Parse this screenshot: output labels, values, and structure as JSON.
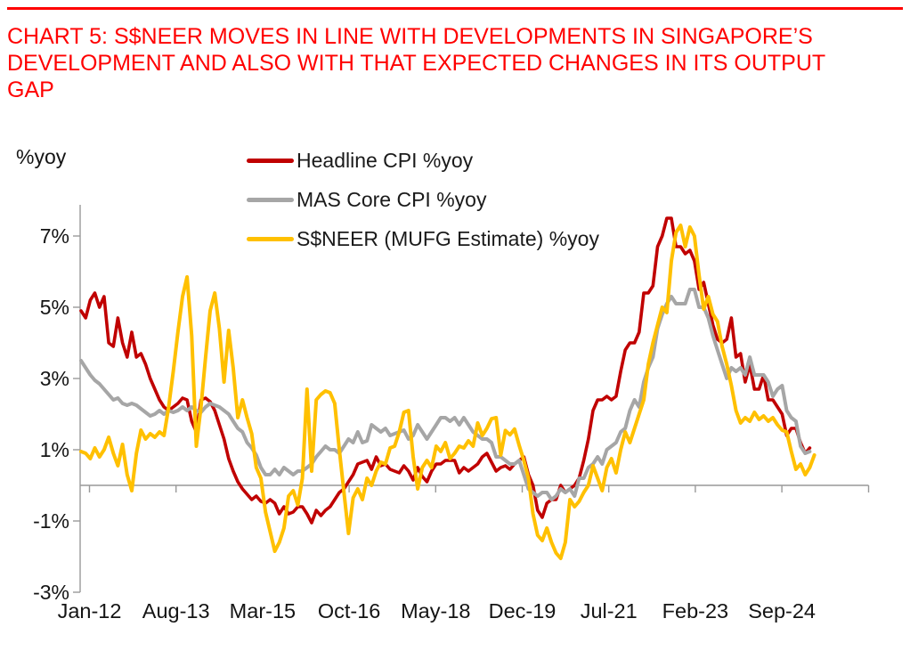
{
  "header": {
    "title": "CHART 5: S$NEER MOVES IN LINE WITH DEVELOPMENTS IN SINGAPORE’S DEVELOPMENT AND ALSO WITH THAT EXPECTED CHANGES IN ITS OUTPUT GAP",
    "title_lines": [
      "CHART 5: S$NEER MOVES IN LINE WITH DEVELOPMENTS IN SINGAPORE’S",
      "DEVELOPMENT AND ALSO WITH THAT EXPECTED CHANGES IN ITS OUTPUT",
      "GAP"
    ],
    "rule_color": "#ff0000",
    "title_color": "#ff0000"
  },
  "chart_data": {
    "type": "line",
    "y_axis_label": "%yoy",
    "y_ticks": [
      "7%",
      "5%",
      "3%",
      "1%",
      "-1%",
      "-3%"
    ],
    "y_tick_values": [
      7,
      5,
      3,
      1,
      -1,
      -3
    ],
    "ylim": [
      -3,
      7.9
    ],
    "grid": "zero-line-only",
    "legend_position": "top-left-inside",
    "x_tick_labels": [
      "Jan-12",
      "Aug-13",
      "Mar-15",
      "Oct-16",
      "May-18",
      "Dec-19",
      "Jul-21",
      "Feb-23",
      "Sep-24"
    ],
    "x_start": "Jan-12",
    "x_interval": "monthly",
    "axis_color": "#999999",
    "series": [
      {
        "name": "Headline CPI %yoy",
        "color": "#C00000",
        "values": [
          4.9,
          4.7,
          5.2,
          5.4,
          5.0,
          5.3,
          4.0,
          3.9,
          4.7,
          4.0,
          3.6,
          4.3,
          3.6,
          3.7,
          3.4,
          3.0,
          2.7,
          2.4,
          2.2,
          2.1,
          2.2,
          2.3,
          2.45,
          2.4,
          1.8,
          1.5,
          2.4,
          2.45,
          2.35,
          2.1,
          1.7,
          1.3,
          0.75,
          0.4,
          0.1,
          -0.1,
          -0.25,
          -0.4,
          -0.3,
          -0.45,
          -0.5,
          -0.4,
          -0.5,
          -0.8,
          -0.6,
          -0.8,
          -0.75,
          -0.6,
          -0.6,
          -0.8,
          -1.05,
          -0.7,
          -0.85,
          -0.7,
          -0.6,
          -0.4,
          -0.2,
          -0.1,
          0.1,
          0.3,
          0.6,
          0.65,
          0.7,
          0.45,
          0.8,
          0.55,
          0.6,
          0.45,
          0.4,
          0.35,
          0.55,
          0.4,
          0.15,
          0.5,
          0.25,
          0.1,
          0.4,
          0.6,
          0.6,
          0.7,
          0.7,
          0.7,
          0.35,
          0.5,
          0.4,
          0.5,
          0.6,
          0.8,
          0.9,
          0.65,
          0.4,
          0.5,
          0.55,
          0.45,
          0.6,
          0.7,
          0.8,
          0.3,
          0.0,
          -0.7,
          -0.9,
          -0.5,
          -0.4,
          -0.4,
          0.0,
          -0.2,
          -0.1,
          0.0,
          0.2,
          0.7,
          1.3,
          2.1,
          2.4,
          2.4,
          2.5,
          2.4,
          2.5,
          3.2,
          3.8,
          4.0,
          4.0,
          4.3,
          5.4,
          5.4,
          5.6,
          6.7,
          7.0,
          7.5,
          7.5,
          6.7,
          6.7,
          6.5,
          6.6,
          6.3,
          5.5,
          5.7,
          5.1,
          4.5,
          4.1,
          4.0,
          4.1,
          4.7,
          3.6,
          3.7,
          2.9,
          3.4,
          2.7,
          2.7,
          3.1,
          2.4,
          2.4,
          2.2,
          2.0,
          1.4,
          1.6,
          1.6,
          1.2,
          0.9,
          1.05,
          null
        ]
      },
      {
        "name": "MAS Core CPI %yoy",
        "color": "#A6A6A6",
        "values": [
          3.5,
          3.3,
          3.1,
          2.95,
          2.85,
          2.7,
          2.55,
          2.4,
          2.45,
          2.3,
          2.25,
          2.3,
          2.25,
          2.15,
          2.05,
          1.95,
          2.0,
          2.1,
          2.0,
          2.1,
          2.05,
          2.1,
          2.2,
          2.1,
          2.2,
          2.1,
          2.05,
          2.2,
          2.3,
          2.25,
          2.2,
          2.1,
          2.0,
          1.8,
          1.6,
          1.5,
          1.2,
          1.05,
          0.85,
          0.5,
          0.3,
          0.3,
          0.45,
          0.3,
          0.5,
          0.4,
          0.3,
          0.4,
          0.4,
          0.5,
          0.6,
          0.8,
          0.95,
          1.1,
          1.0,
          1.0,
          0.9,
          1.1,
          1.3,
          1.2,
          1.5,
          1.2,
          1.25,
          1.7,
          1.6,
          1.5,
          1.6,
          1.4,
          1.45,
          1.5,
          1.55,
          1.3,
          1.4,
          1.7,
          1.5,
          1.3,
          1.5,
          1.7,
          1.9,
          1.9,
          1.8,
          1.9,
          1.7,
          1.9,
          1.7,
          1.5,
          1.4,
          1.3,
          1.3,
          1.2,
          0.8,
          0.8,
          0.7,
          0.6,
          0.6,
          0.7,
          0.3,
          -0.1,
          -0.2,
          -0.3,
          -0.2,
          -0.2,
          -0.4,
          -0.3,
          -0.1,
          -0.2,
          -0.1,
          -0.3,
          0.2,
          0.2,
          0.5,
          0.6,
          0.8,
          0.6,
          1.0,
          1.1,
          1.2,
          1.5,
          1.6,
          2.1,
          2.4,
          2.2,
          2.9,
          3.3,
          3.6,
          4.4,
          4.8,
          5.1,
          5.3,
          5.1,
          5.1,
          5.1,
          5.5,
          5.5,
          5.0,
          5.0,
          4.7,
          4.2,
          3.8,
          3.4,
          3.0,
          3.3,
          3.2,
          3.3,
          3.1,
          3.6,
          3.1,
          3.1,
          3.1,
          2.9,
          2.5,
          2.7,
          2.8,
          2.1,
          1.9,
          1.8,
          1.1,
          0.9,
          0.95,
          null
        ]
      },
      {
        "name": "S$NEER (MUFG Estimate) %yoy",
        "color": "#FFC000",
        "values": [
          0.95,
          0.9,
          0.75,
          1.05,
          0.8,
          1.0,
          1.35,
          0.9,
          0.55,
          1.15,
          0.3,
          -0.15,
          0.9,
          1.55,
          1.3,
          1.45,
          1.35,
          1.5,
          1.4,
          2.2,
          3.2,
          4.3,
          5.3,
          5.85,
          4.2,
          1.1,
          2.2,
          3.6,
          4.9,
          5.4,
          4.4,
          2.9,
          4.35,
          3.3,
          1.9,
          2.4,
          1.9,
          1.45,
          0.5,
          0.2,
          -0.75,
          -1.3,
          -1.85,
          -1.6,
          -1.2,
          -0.3,
          -0.15,
          -0.55,
          0.2,
          2.7,
          0.4,
          2.4,
          2.55,
          2.65,
          2.6,
          2.3,
          1.0,
          -0.2,
          -1.35,
          -0.35,
          -0.1,
          -0.4,
          0.2,
          0.0,
          0.4,
          0.65,
          0.6,
          1.05,
          1.1,
          1.5,
          2.05,
          2.1,
          0.8,
          -0.1,
          0.5,
          0.7,
          0.5,
          1.1,
          0.95,
          1.2,
          0.75,
          0.9,
          1.1,
          1.05,
          1.25,
          1.1,
          1.75,
          1.4,
          1.6,
          1.87,
          1.9,
          0.85,
          1.54,
          1.42,
          1.58,
          1.12,
          0.7,
          0.2,
          -0.8,
          -1.4,
          -1.55,
          -1.2,
          -1.6,
          -1.9,
          -2.05,
          -1.6,
          -0.4,
          -0.6,
          -0.45,
          -0.2,
          0.0,
          0.55,
          0.2,
          -0.15,
          0.5,
          0.75,
          0.35,
          1.0,
          1.5,
          1.2,
          1.6,
          2.0,
          2.4,
          3.4,
          4.0,
          4.5,
          5.0,
          4.85,
          6.3,
          7.1,
          7.3,
          6.7,
          7.25,
          7.0,
          5.9,
          4.95,
          5.3,
          4.8,
          4.6,
          3.9,
          3.4,
          2.8,
          2.1,
          1.75,
          1.9,
          1.8,
          2.05,
          1.85,
          1.95,
          1.8,
          1.9,
          1.7,
          1.55,
          1.5,
          0.95,
          0.45,
          0.6,
          0.3,
          0.5,
          0.85
        ]
      }
    ]
  }
}
